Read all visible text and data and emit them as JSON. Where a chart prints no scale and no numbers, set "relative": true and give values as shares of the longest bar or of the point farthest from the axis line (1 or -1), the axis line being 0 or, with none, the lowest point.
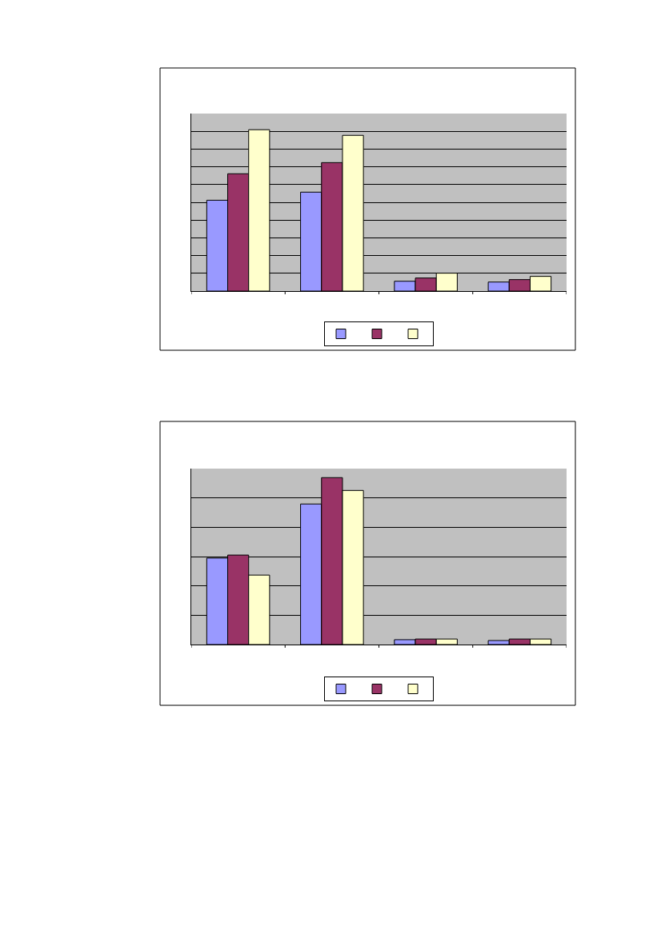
{
  "chart_data": [
    {
      "type": "bar",
      "relative": true,
      "grid": "y",
      "categories": [
        null,
        null,
        null,
        null
      ],
      "series": [
        {
          "color": "#9999ff",
          "values": [
            0.563,
            0.613,
            0.061,
            0.056
          ]
        },
        {
          "color": "#993366",
          "values": [
            0.727,
            0.796,
            0.081,
            0.071
          ]
        },
        {
          "color": "#ffffcc",
          "values": [
            1,
            0.965,
            0.111,
            0.091
          ]
        }
      ]
    },
    {
      "type": "bar",
      "relative": true,
      "grid": "y",
      "categories": [
        null,
        null,
        null,
        null
      ],
      "series": [
        {
          "color": "#9999ff",
          "values": [
            0.518,
            0.842,
            0.029,
            0.024
          ]
        },
        {
          "color": "#993366",
          "values": [
            0.536,
            1,
            0.033,
            0.033
          ]
        },
        {
          "color": "#ffffcc",
          "values": [
            0.416,
            0.923,
            0.033,
            0.033
          ]
        }
      ]
    }
  ]
}
